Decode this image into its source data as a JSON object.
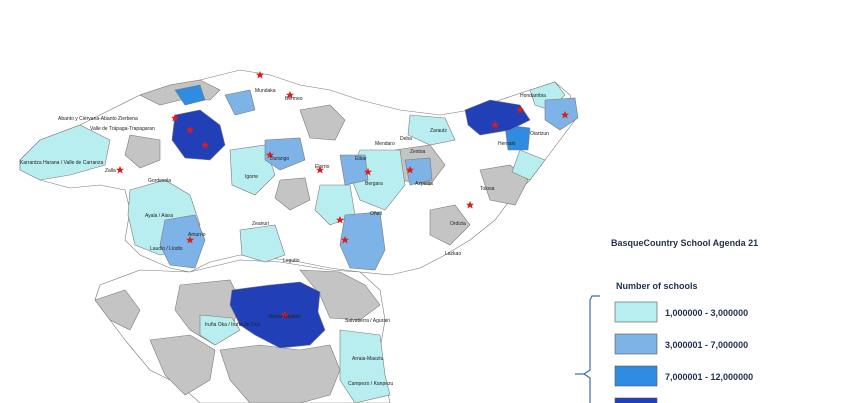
{
  "title": "BasqueCountry School Agenda 21",
  "legend": {
    "title": "Number of schools",
    "classes": [
      {
        "label": "1,000000 - 3,000000",
        "color": "#b9eef1"
      },
      {
        "label": "3,000001 - 7,000000",
        "color": "#7db3e6"
      },
      {
        "label": "7,000001 - 12,000000",
        "color": "#2f8ce0"
      },
      {
        "label": "12,000001 - 22,000000",
        "color": "#2140b8"
      }
    ]
  },
  "municipalities": [
    "Karrantza Harana / Valle de Carranza",
    "Abanto y Ciérvana-Abanto Zierbena",
    "Valle de Trápaga-Trapagaran",
    "Zalla",
    "Gordexola",
    "Ayala / Aiara",
    "Amurrio",
    "Laudio / Llodio",
    "Vitoria-Gasteiz",
    "Iruña Oka / Iruña de Oca",
    "Arraia-Maeztu",
    "Campezo / Kanpezu",
    "Salvatierra / Agurain",
    "Mundaka",
    "Bermeo",
    "Durango",
    "Elorrio",
    "Mendaro",
    "Deba",
    "Zestoa",
    "Zarautz",
    "Hondarribia",
    "Oiartzun",
    "Hernani",
    "Tolosa",
    "Lazkao",
    "Eibar",
    "Bergara",
    "Oñati",
    "Zeanuri",
    "Legutio",
    "Azpeitia",
    "Ordizia",
    "Igorre"
  ]
}
